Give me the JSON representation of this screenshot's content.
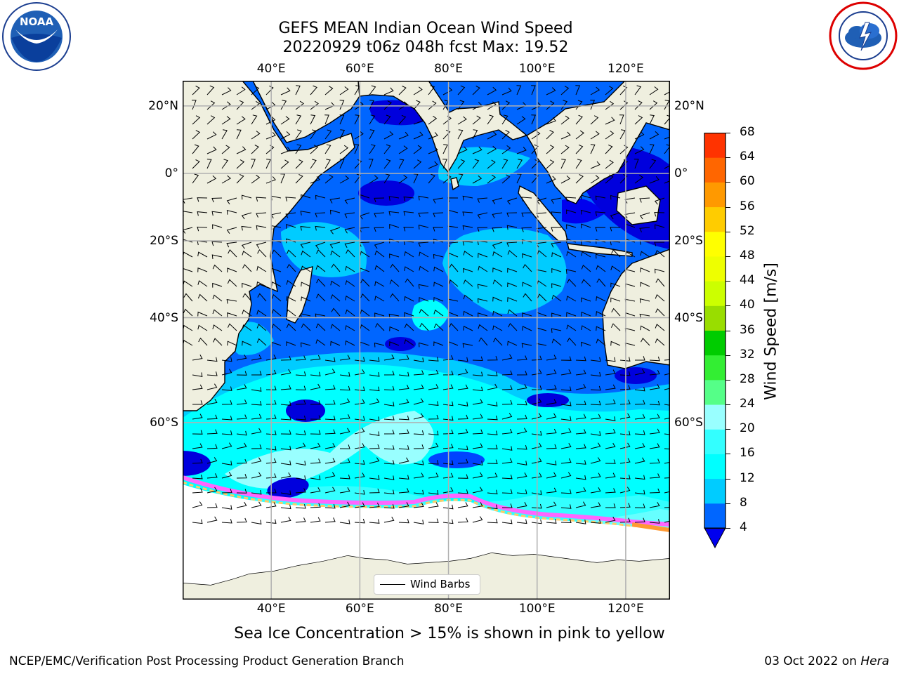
{
  "header": {
    "title_line1": "GEFS MEAN Indian Ocean Wind Speed",
    "title_line2": "20220929 t06z 048h fcst   Max: 19.52"
  },
  "logos": {
    "left": {
      "icon": "noaa-logo-icon",
      "text": "NOAA",
      "ring_text": "NATIONAL OCEANIC AND ATMOSPHERIC ADMINISTRATION · U.S. DEPARTMENT OF COMMERCE"
    },
    "right": {
      "icon": "nws-logo-icon",
      "ring_text": "NATIONAL WEATHER SERVICE"
    }
  },
  "map": {
    "lon_range": [
      20,
      130
    ],
    "lat_range": [
      -78,
      27
    ],
    "lon_ticks": [
      {
        "value": 40,
        "label": "40°E"
      },
      {
        "value": 60,
        "label": "60°E"
      },
      {
        "value": 80,
        "label": "80°E"
      },
      {
        "value": 100,
        "label": "100°E"
      },
      {
        "value": 120,
        "label": "120°E"
      }
    ],
    "lat_ticks": [
      {
        "value": 20,
        "label": "20°N"
      },
      {
        "value": 0,
        "label": "0°"
      },
      {
        "value": -20,
        "label": "20°S"
      },
      {
        "value": -40,
        "label": "40°S"
      },
      {
        "value": -60,
        "label": "60°S"
      }
    ],
    "land_color": "#efefdf",
    "ice_colors": [
      "#ff66ff",
      "#ff99cc",
      "#ffcc66",
      "#ffff66"
    ],
    "legend_label": "Wind Barbs"
  },
  "colorbar": {
    "label": "Wind Speed [m/s]",
    "levels": [
      4,
      8,
      12,
      16,
      20,
      24,
      28,
      32,
      36,
      40,
      44,
      48,
      52,
      56,
      60,
      64,
      68
    ],
    "colors": [
      "#0066ff",
      "#00ccff",
      "#00ffff",
      "#33ffff",
      "#99ffff",
      "#55ff88",
      "#33ee33",
      "#00cc00",
      "#99dd00",
      "#ccff00",
      "#eeff00",
      "#ffff00",
      "#ffcc00",
      "#ff9900",
      "#ff6600",
      "#ff3300"
    ],
    "extend_min_color": "#0000ee"
  },
  "caption": "Sea Ice Concentration > 15% is shown in pink to yellow",
  "footer": {
    "left": "NCEP/EMC/Verification Post Processing Product Generation Branch",
    "date": "03 Oct 2022 on ",
    "host": "Hera"
  }
}
